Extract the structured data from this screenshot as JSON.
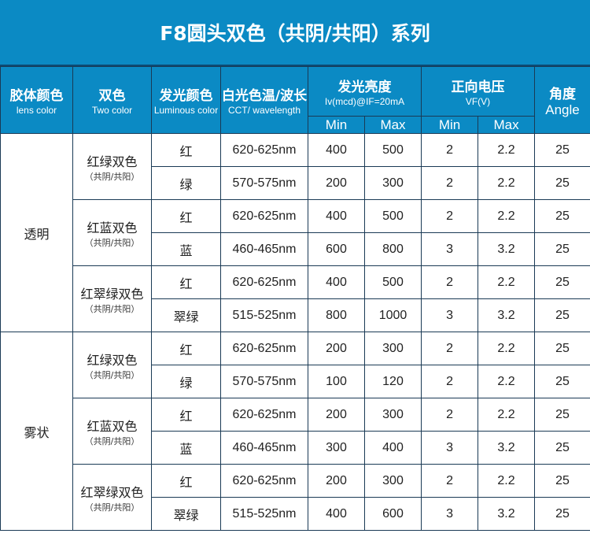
{
  "title": "F8圆头双色（共阴/共阳）系列",
  "headers": {
    "lens": {
      "zh": "胶体颜色",
      "en": "lens color"
    },
    "two": {
      "zh": "双色",
      "en": "Two color"
    },
    "lum": {
      "zh": "发光颜色",
      "en": "Luminous color"
    },
    "cct": {
      "zh": "白光色温/波长",
      "en": "CCT/ wavelength"
    },
    "iv": {
      "zh": "发光亮度",
      "en": "Iv(mcd)@IF=20mA"
    },
    "vf": {
      "zh": "正向电压",
      "en": "VF(V)"
    },
    "angle": {
      "zh": "角度",
      "en": "Angle"
    },
    "min": "Min",
    "max": "Max"
  },
  "groups": [
    {
      "lens": "透明",
      "pairs": [
        {
          "name": "红绿双色",
          "sub": "（共阴/共阳）",
          "rows": [
            [
              "红",
              "620-625nm",
              "400",
              "500",
              "2",
              "2.2",
              "25"
            ],
            [
              "绿",
              "570-575nm",
              "200",
              "300",
              "2",
              "2.2",
              "25"
            ]
          ]
        },
        {
          "name": "红蓝双色",
          "sub": "（共阴/共阳）",
          "rows": [
            [
              "红",
              "620-625nm",
              "400",
              "500",
              "2",
              "2.2",
              "25"
            ],
            [
              "蓝",
              "460-465nm",
              "600",
              "800",
              "3",
              "3.2",
              "25"
            ]
          ]
        },
        {
          "name": "红翠绿双色",
          "sub": "（共阴/共阳）",
          "rows": [
            [
              "红",
              "620-625nm",
              "400",
              "500",
              "2",
              "2.2",
              "25"
            ],
            [
              "翠绿",
              "515-525nm",
              "800",
              "1000",
              "3",
              "3.2",
              "25"
            ]
          ]
        }
      ]
    },
    {
      "lens": "雾状",
      "pairs": [
        {
          "name": "红绿双色",
          "sub": "（共阴/共阳）",
          "rows": [
            [
              "红",
              "620-625nm",
              "200",
              "300",
              "2",
              "2.2",
              "25"
            ],
            [
              "绿",
              "570-575nm",
              "100",
              "120",
              "2",
              "2.2",
              "25"
            ]
          ]
        },
        {
          "name": "红蓝双色",
          "sub": "（共阴/共阳）",
          "rows": [
            [
              "红",
              "620-625nm",
              "200",
              "300",
              "2",
              "2.2",
              "25"
            ],
            [
              "蓝",
              "460-465nm",
              "300",
              "400",
              "3",
              "3.2",
              "25"
            ]
          ]
        },
        {
          "name": "红翠绿双色",
          "sub": "（共阴/共阳）",
          "rows": [
            [
              "红",
              "620-625nm",
              "200",
              "300",
              "2",
              "2.2",
              "25"
            ],
            [
              "翠绿",
              "515-525nm",
              "400",
              "600",
              "3",
              "3.2",
              "25"
            ]
          ]
        }
      ]
    }
  ]
}
